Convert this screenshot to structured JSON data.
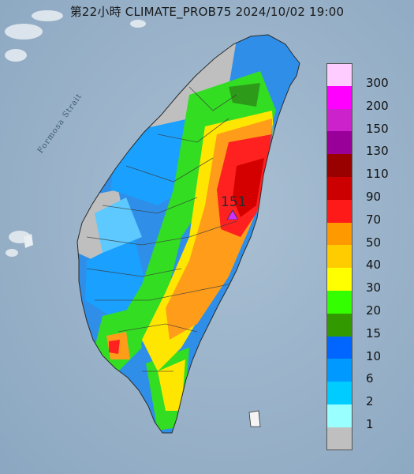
{
  "title": "第22小時  CLIMATE_PROB75 2024/10/02 19:00",
  "sea_label": "Formosa Strait",
  "peak": {
    "value": "151"
  },
  "legend": {
    "items": [
      {
        "label": "300",
        "color": "#ffccff"
      },
      {
        "label": "200",
        "color": "#ff00ff"
      },
      {
        "label": "150",
        "color": "#cc22cc"
      },
      {
        "label": "130",
        "color": "#990099"
      },
      {
        "label": "110",
        "color": "#990000"
      },
      {
        "label": "90",
        "color": "#cc0000"
      },
      {
        "label": "70",
        "color": "#ff1a1a"
      },
      {
        "label": "50",
        "color": "#ff9900"
      },
      {
        "label": "40",
        "color": "#ffcc00"
      },
      {
        "label": "30",
        "color": "#ffff00"
      },
      {
        "label": "20",
        "color": "#33ff00"
      },
      {
        "label": "15",
        "color": "#339900"
      },
      {
        "label": "10",
        "color": "#0066ff"
      },
      {
        "label": "6",
        "color": "#0099ff"
      },
      {
        "label": "2",
        "color": "#00ccff"
      },
      {
        "label": "1",
        "color": "#99ffff"
      },
      {
        "label": "",
        "color": "#bfbfbf"
      }
    ]
  }
}
